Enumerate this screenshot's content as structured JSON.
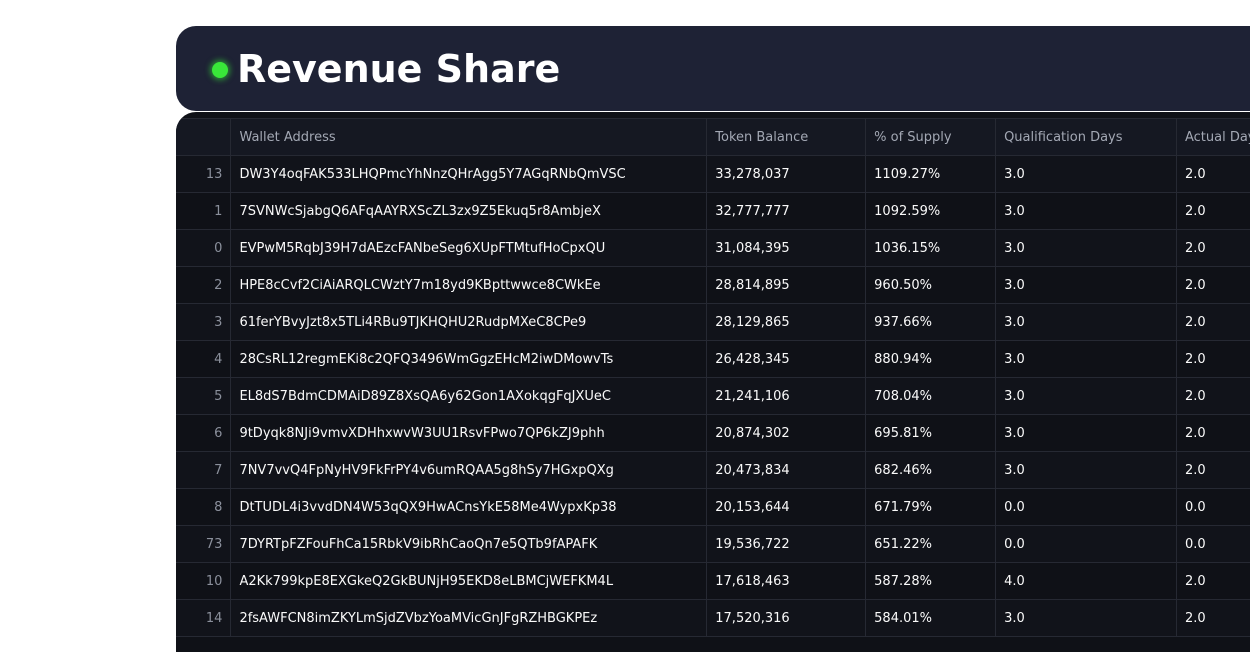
{
  "header": {
    "title": "Revenue Share",
    "status_dot_color": "#39e639"
  },
  "table": {
    "columns": [
      "",
      "Wallet Address",
      "Token Balance",
      "% of Supply",
      "Qualification Days",
      "Actual Days"
    ],
    "rows": [
      [
        "13",
        "DW3Y4oqFAK533LHQPmcYhNnzQHrAgg5Y7AGqRNbQmVSC",
        "33,278,037",
        "1109.27%",
        "3.0",
        "2.0"
      ],
      [
        "1",
        "7SVNWcSjabgQ6AFqAAYRXScZL3zx9Z5Ekuq5r8AmbjeX",
        "32,777,777",
        "1092.59%",
        "3.0",
        "2.0"
      ],
      [
        "0",
        "EVPwM5RqbJ39H7dAEzcFANbeSeg6XUpFTMtufHoCpxQU",
        "31,084,395",
        "1036.15%",
        "3.0",
        "2.0"
      ],
      [
        "2",
        "HPE8cCvf2CiAiARQLCWztY7m18yd9KBpttwwce8CWkEe",
        "28,814,895",
        "960.50%",
        "3.0",
        "2.0"
      ],
      [
        "3",
        "61ferYBvyJzt8x5TLi4RBu9TJKHQHU2RudpMXeC8CPe9",
        "28,129,865",
        "937.66%",
        "3.0",
        "2.0"
      ],
      [
        "4",
        "28CsRL12regmEKi8c2QFQ3496WmGgzEHcM2iwDMowvTs",
        "26,428,345",
        "880.94%",
        "3.0",
        "2.0"
      ],
      [
        "5",
        "EL8dS7BdmCDMAiD89Z8XsQA6y62Gon1AXokqgFqJXUeC",
        "21,241,106",
        "708.04%",
        "3.0",
        "2.0"
      ],
      [
        "6",
        "9tDyqk8NJi9vmvXDHhxwvW3UU1RsvFPwo7QP6kZJ9phh",
        "20,874,302",
        "695.81%",
        "3.0",
        "2.0"
      ],
      [
        "7",
        "7NV7vvQ4FpNyHV9FkFrPY4v6umRQAA5g8hSy7HGxpQXg",
        "20,473,834",
        "682.46%",
        "3.0",
        "2.0"
      ],
      [
        "8",
        "DtTUDL4i3vvdDN4W53qQX9HwACnsYkE58Me4WypxKp38",
        "20,153,644",
        "671.79%",
        "0.0",
        "0.0"
      ],
      [
        "73",
        "7DYRTpFZFouFhCa15RbkV9ibRhCaoQn7e5QTb9fAPAFK",
        "19,536,722",
        "651.22%",
        "0.0",
        "0.0"
      ],
      [
        "10",
        "A2Kk799kpE8EXGkeQ2GkBUNjH95EKD8eLBMCjWEFKM4L",
        "17,618,463",
        "587.28%",
        "4.0",
        "2.0"
      ],
      [
        "14",
        "2fsAWFCN8imZKYLmSjdZVbzYoaMVicGnJFgRZHBGKPEz",
        "17,520,316",
        "584.01%",
        "3.0",
        "2.0"
      ]
    ]
  }
}
